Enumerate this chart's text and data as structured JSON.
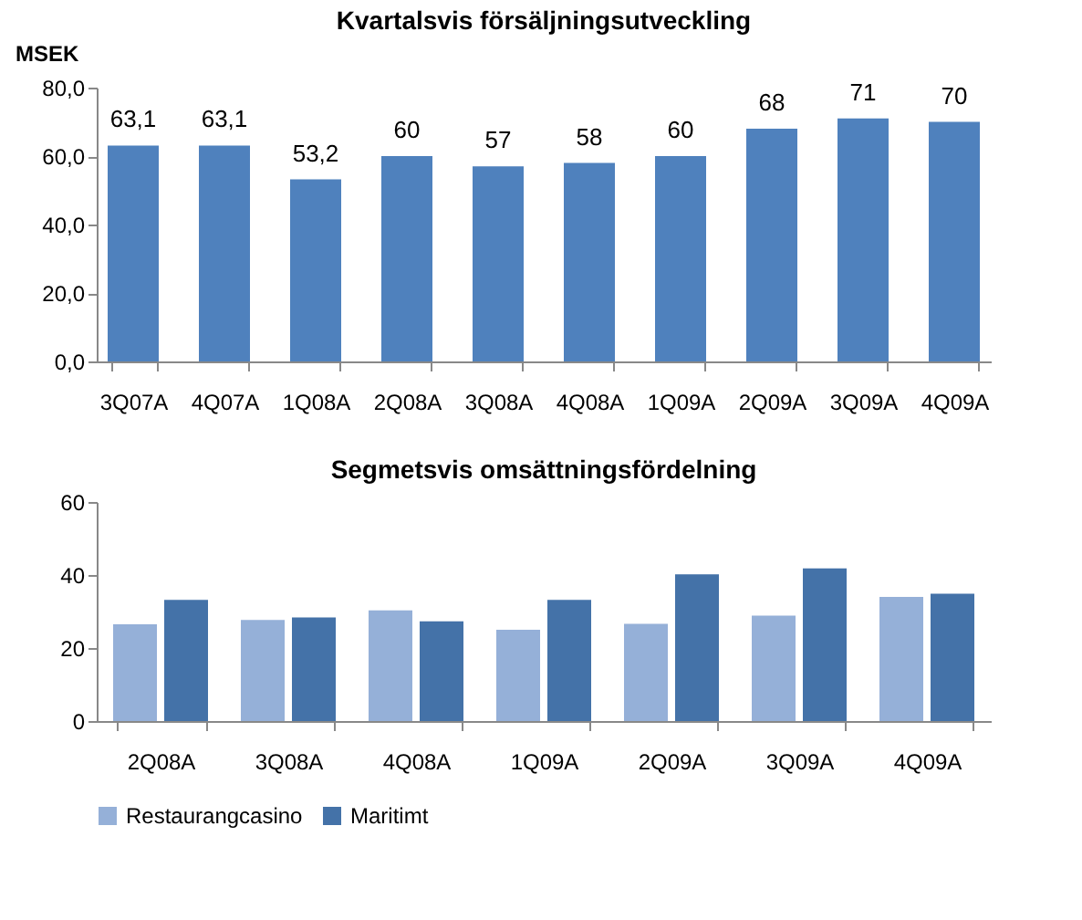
{
  "chart_data": [
    {
      "type": "bar",
      "title": "Kvartalsvis försäljningsutveckling",
      "ylabel": "MSEK",
      "categories": [
        "3Q07A",
        "4Q07A",
        "1Q08A",
        "2Q08A",
        "3Q08A",
        "4Q08A",
        "1Q09A",
        "2Q09A",
        "3Q09A",
        "4Q09A"
      ],
      "series": [
        {
          "color": "#4f81bd",
          "values": [
            63.1,
            63.1,
            53.2,
            60,
            57,
            58,
            60,
            68,
            71,
            70
          ],
          "value_labels": [
            "63,1",
            "63,1",
            "53,2",
            "60",
            "57",
            "58",
            "60",
            "68",
            "71",
            "70"
          ]
        }
      ],
      "ylim": [
        0,
        80
      ],
      "yticks": [
        {
          "value": 0,
          "label": "0,0"
        },
        {
          "value": 20,
          "label": "20,0"
        },
        {
          "value": 40,
          "label": "40,0"
        },
        {
          "value": 60,
          "label": "60,0"
        },
        {
          "value": 80,
          "label": "80,0"
        }
      ],
      "grid": false
    },
    {
      "type": "bar",
      "title": "Segmetsvis omsättningsfördelning",
      "categories": [
        "2Q08A",
        "3Q08A",
        "4Q08A",
        "1Q09A",
        "2Q09A",
        "3Q09A",
        "4Q09A"
      ],
      "series": [
        {
          "name": "Restaurangcasino",
          "color": "#95b0d8",
          "values": [
            26.5,
            27.7,
            30.3,
            25.0,
            26.6,
            28.9,
            34.0
          ]
        },
        {
          "name": "Maritimt",
          "color": "#4472a8",
          "values": [
            33.2,
            28.4,
            27.3,
            33.2,
            40.2,
            41.8,
            34.9
          ]
        }
      ],
      "ylim": [
        0,
        60
      ],
      "yticks": [
        0,
        20,
        40,
        60
      ],
      "grid": false,
      "legend": "bottom"
    }
  ]
}
